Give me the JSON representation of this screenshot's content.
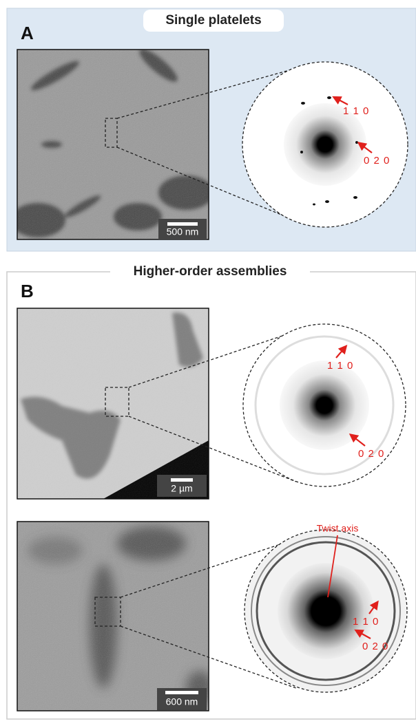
{
  "panel_a": {
    "title": "Single platelets",
    "label": "A",
    "scale_bar": "500 nm",
    "spots": [
      "1 1 0",
      "0 2 0"
    ]
  },
  "panel_b": {
    "title": "Higher-order assemblies",
    "label": "B",
    "rows": [
      {
        "scale_bar": "2 µm",
        "spots": [
          "1 1 0",
          "0 2 0"
        ]
      },
      {
        "scale_bar": "600 nm",
        "spots": [
          "1 1 0",
          "0 2 0"
        ],
        "annotation": "Twist axis"
      }
    ]
  }
}
